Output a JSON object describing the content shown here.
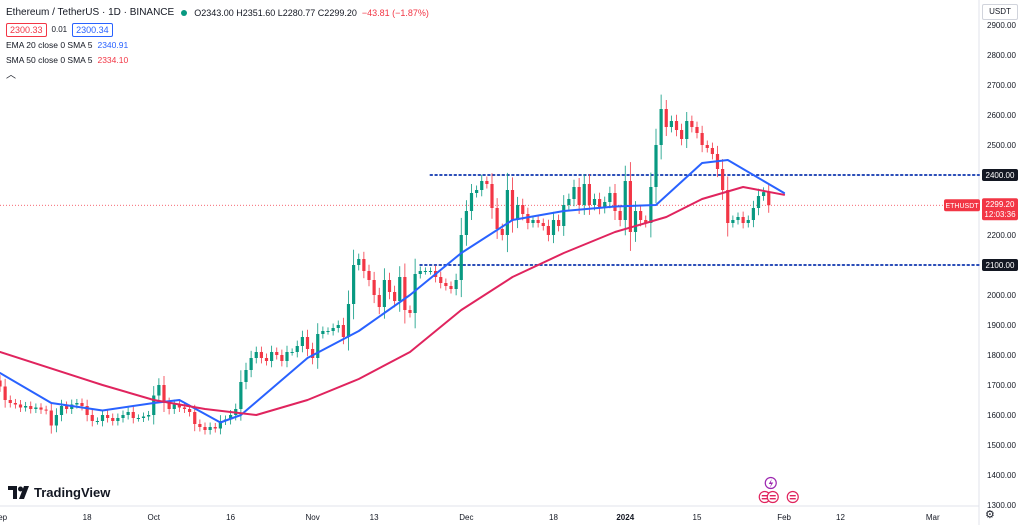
{
  "header": {
    "symbol": "Ethereum / TetherUS · 1D · BINANCE",
    "ohlc": "O2343.00 H2351.60 L2280.77 C2299.20",
    "change": "−43.81 (−1.87%)",
    "bid": "2300.33",
    "spread": "0.01",
    "ask": "2300.34",
    "ema_label": "EMA 20 close 0 SMA 5",
    "ema_value": "2340.91",
    "sma_label": "SMA 50 close 0 SMA 5",
    "sma_value": "2334.10",
    "currency": "USDT",
    "brand": "TradingView",
    "chevron": "︿",
    "gear": "⚙"
  },
  "colors": {
    "up": "#089981",
    "down": "#f23645",
    "ema": "#2962ff",
    "sma": "#e0245e",
    "level": "#2a4db8",
    "price_tag": "#f23645",
    "level_tag": "#131722"
  },
  "chart_data": {
    "type": "candlestick",
    "title": "Ethereum / TetherUS · 1D · BINANCE",
    "y_ticks": [
      2900,
      2800,
      2700,
      2600,
      2500,
      2400,
      2300,
      2200,
      2100,
      2000,
      1900,
      1800,
      1700,
      1600,
      1500,
      1400,
      1300
    ],
    "ylim": [
      1263,
      2970
    ],
    "x_ticks": [
      {
        "label": "Sep",
        "day": 0
      },
      {
        "label": "18",
        "day": 17
      },
      {
        "label": "Oct",
        "day": 30
      },
      {
        "label": "16",
        "day": 45
      },
      {
        "label": "Nov",
        "day": 61
      },
      {
        "label": "13",
        "day": 73
      },
      {
        "label": "Dec",
        "day": 91
      },
      {
        "label": "18",
        "day": 108
      },
      {
        "label": "2024",
        "day": 122
      },
      {
        "label": "15",
        "day": 136
      },
      {
        "label": "Feb",
        "day": 153
      },
      {
        "label": "12",
        "day": 164
      },
      {
        "label": "Mar",
        "day": 182
      }
    ],
    "horizontal_levels": [
      {
        "value": 2400,
        "label": "2400.00",
        "start_day": 84
      },
      {
        "value": 2100,
        "label": "2100.00",
        "start_day": 82
      }
    ],
    "last_price": {
      "value": 2299.2,
      "symbol": "ETHUSDT",
      "price": "2299.20",
      "countdown": "12:03:36"
    },
    "events_day": 150,
    "series": [
      {
        "name": "ETHUSDT",
        "type": "candles",
        "start_day": 0,
        "close": [
          1695,
          1650,
          1640,
          1635,
          1625,
          1630,
          1620,
          1625,
          1618,
          1615,
          1565,
          1600,
          1630,
          1620,
          1635,
          1640,
          1630,
          1600,
          1580,
          1580,
          1600,
          1590,
          1580,
          1590,
          1600,
          1610,
          1590,
          1590,
          1595,
          1600,
          1665,
          1700,
          1640,
          1620,
          1635,
          1625,
          1620,
          1610,
          1570,
          1560,
          1550,
          1560,
          1555,
          1580,
          1585,
          1600,
          1620,
          1710,
          1750,
          1790,
          1810,
          1790,
          1780,
          1810,
          1800,
          1780,
          1810,
          1810,
          1830,
          1860,
          1820,
          1790,
          1870,
          1880,
          1880,
          1890,
          1900,
          1860,
          1970,
          2100,
          2120,
          2080,
          2050,
          2000,
          1960,
          2050,
          2010,
          1980,
          2060,
          1950,
          1940,
          2070,
          2080,
          2080,
          2080,
          2060,
          2040,
          2030,
          2020,
          2050,
          2200,
          2280,
          2340,
          2350,
          2380,
          2370,
          2290,
          2220,
          2200,
          2350,
          2250,
          2300,
          2270,
          2240,
          2250,
          2240,
          2230,
          2200,
          2250,
          2230,
          2300,
          2320,
          2360,
          2300,
          2370,
          2300,
          2320,
          2290,
          2310,
          2340,
          2280,
          2250,
          2380,
          2210,
          2280,
          2250,
          2240,
          2360,
          2500,
          2620,
          2560,
          2580,
          2550,
          2520,
          2580,
          2560,
          2540,
          2500,
          2490,
          2470,
          2420,
          2350,
          2240,
          2250,
          2260,
          2240,
          2250,
          2290,
          2330,
          2343,
          2299.2
        ],
        "up_color": "#089981",
        "down_color": "#f23645"
      },
      {
        "name": "EMA 20",
        "values_by_day": {
          "0": 1740,
          "10": 1640,
          "20": 1615,
          "30": 1640,
          "35": 1650,
          "43": 1575,
          "47": 1600,
          "60": 1790,
          "70": 1880,
          "80": 2000,
          "90": 2140,
          "100": 2250,
          "110": 2280,
          "120": 2295,
          "128": 2300,
          "137": 2440,
          "142": 2450,
          "152": 2350,
          "153": 2340
        },
        "color": "#2962ff"
      },
      {
        "name": "SMA 50",
        "values_by_day": {
          "0": 1810,
          "20": 1700,
          "30": 1650,
          "40": 1620,
          "50": 1600,
          "60": 1650,
          "70": 1720,
          "80": 1810,
          "90": 1950,
          "100": 2060,
          "110": 2140,
          "120": 2210,
          "130": 2260,
          "137": 2320,
          "145": 2360,
          "153": 2334
        },
        "color": "#e0245e"
      }
    ]
  }
}
